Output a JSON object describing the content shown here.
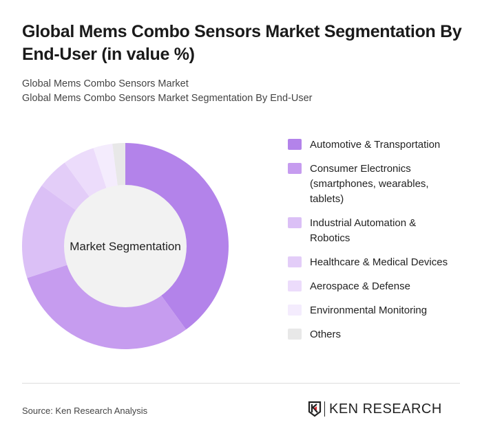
{
  "title": "Global Mems Combo Sensors Market Segmentation By End-User (in value %)",
  "subtitle1": "Global Mems Combo Sensors Market",
  "subtitle2": "Global Mems Combo Sensors Market Segmentation By End-User",
  "source": "Source: Ken Research Analysis",
  "logo_text": "KEN RESEARCH",
  "chart_data": {
    "type": "pie",
    "variant": "donut",
    "center_label": "Market Segmentation",
    "legend_position": "right",
    "categories": [
      "Automotive & Transportation",
      "Consumer Electronics (smartphones, wearables, tablets)",
      "Industrial Automation & Robotics",
      "Healthcare & Medical Devices",
      "Aerospace & Defense",
      "Environmental Monitoring",
      "Others"
    ],
    "values": [
      40,
      30,
      15,
      5,
      5,
      3,
      2
    ],
    "colors": [
      "#b383ea",
      "#c69cef",
      "#dbc0f6",
      "#e3cdf8",
      "#ecdcfb",
      "#f4ecfd",
      "#e8e8e8"
    ]
  }
}
